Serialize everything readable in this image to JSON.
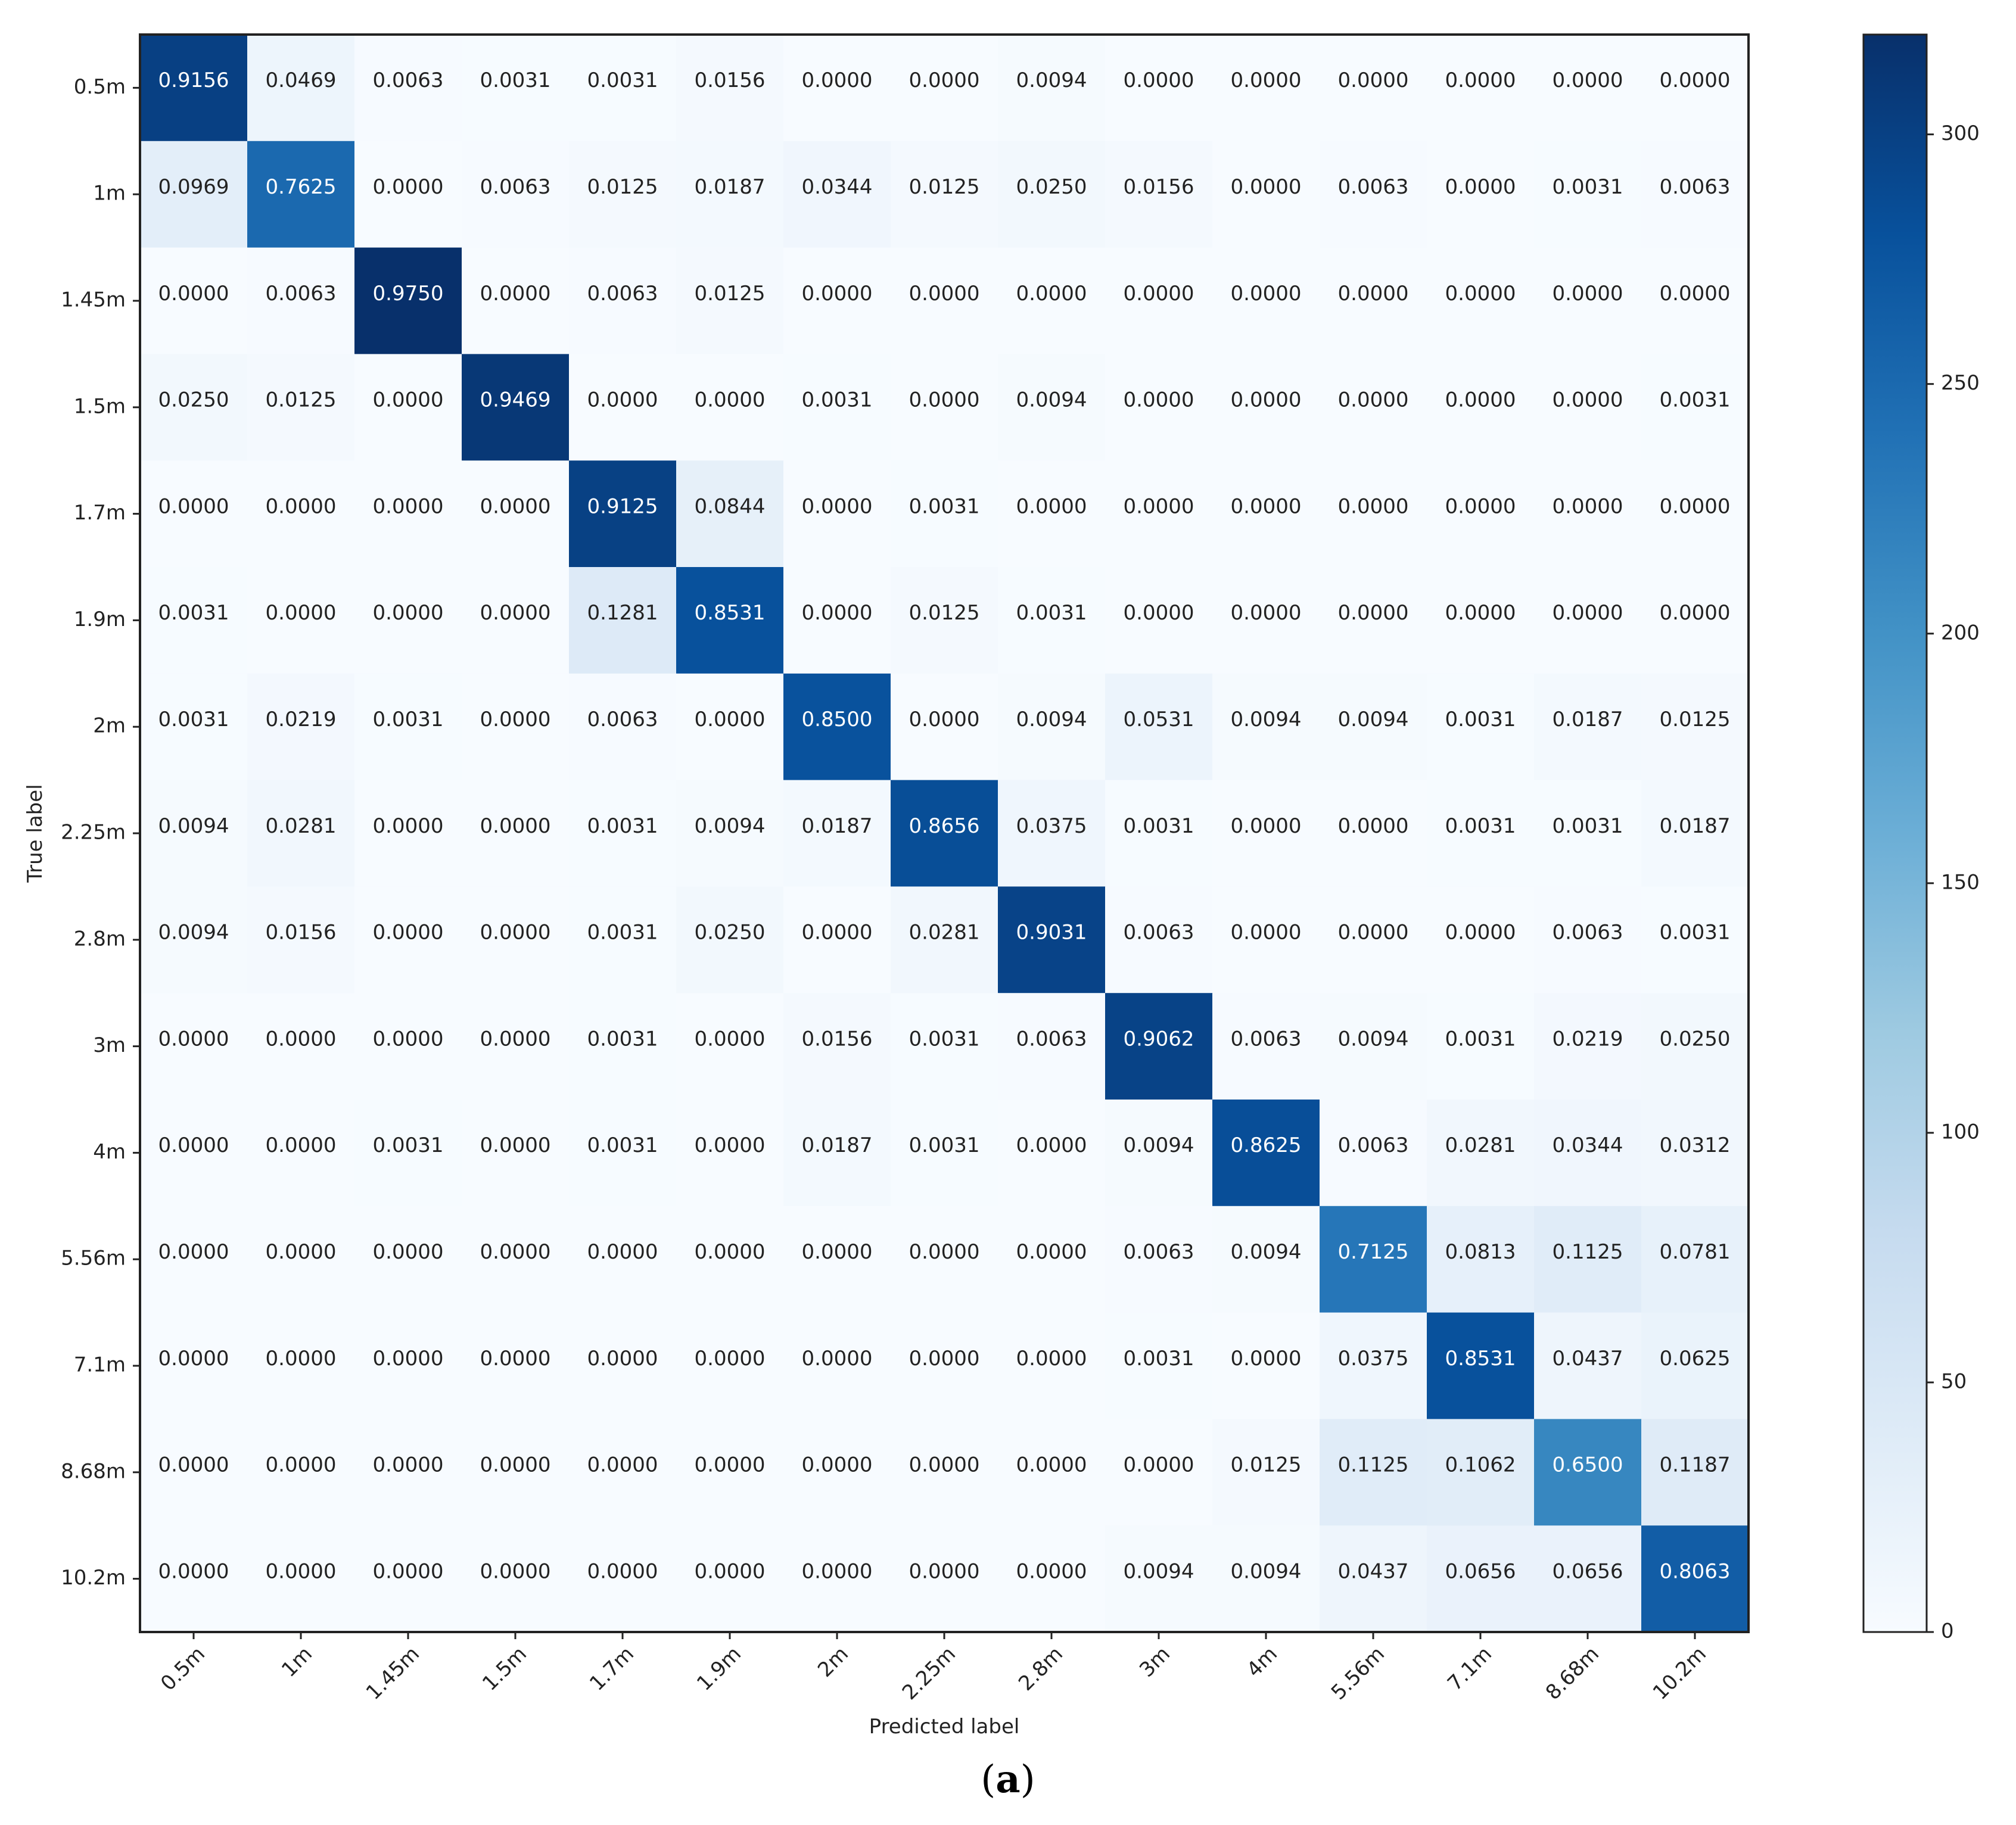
{
  "chart_data": {
    "type": "heatmap",
    "xlabel": "Predicted label",
    "ylabel": "True label",
    "x_categories": [
      "0.5m",
      "1m",
      "1.45m",
      "1.5m",
      "1.7m",
      "1.9m",
      "2m",
      "2.25m",
      "2.8m",
      "3m",
      "4m",
      "5.56m",
      "7.1m",
      "8.68m",
      "10.2m"
    ],
    "y_categories": [
      "0.5m",
      "1m",
      "1.45m",
      "1.5m",
      "1.7m",
      "1.9m",
      "2m",
      "2.25m",
      "2.8m",
      "3m",
      "4m",
      "5.56m",
      "7.1m",
      "8.68m",
      "10.2m"
    ],
    "values": [
      [
        "0.9156",
        "0.0469",
        "0.0063",
        "0.0031",
        "0.0031",
        "0.0156",
        "0.0000",
        "0.0000",
        "0.0094",
        "0.0000",
        "0.0000",
        "0.0000",
        "0.0000",
        "0.0000",
        "0.0000"
      ],
      [
        "0.0969",
        "0.7625",
        "0.0000",
        "0.0063",
        "0.0125",
        "0.0187",
        "0.0344",
        "0.0125",
        "0.0250",
        "0.0156",
        "0.0000",
        "0.0063",
        "0.0000",
        "0.0031",
        "0.0063"
      ],
      [
        "0.0000",
        "0.0063",
        "0.9750",
        "0.0000",
        "0.0063",
        "0.0125",
        "0.0000",
        "0.0000",
        "0.0000",
        "0.0000",
        "0.0000",
        "0.0000",
        "0.0000",
        "0.0000",
        "0.0000"
      ],
      [
        "0.0250",
        "0.0125",
        "0.0000",
        "0.9469",
        "0.0000",
        "0.0000",
        "0.0031",
        "0.0000",
        "0.0094",
        "0.0000",
        "0.0000",
        "0.0000",
        "0.0000",
        "0.0000",
        "0.0031"
      ],
      [
        "0.0000",
        "0.0000",
        "0.0000",
        "0.0000",
        "0.9125",
        "0.0844",
        "0.0000",
        "0.0031",
        "0.0000",
        "0.0000",
        "0.0000",
        "0.0000",
        "0.0000",
        "0.0000",
        "0.0000"
      ],
      [
        "0.0031",
        "0.0000",
        "0.0000",
        "0.0000",
        "0.1281",
        "0.8531",
        "0.0000",
        "0.0125",
        "0.0031",
        "0.0000",
        "0.0000",
        "0.0000",
        "0.0000",
        "0.0000",
        "0.0000"
      ],
      [
        "0.0031",
        "0.0219",
        "0.0031",
        "0.0000",
        "0.0063",
        "0.0000",
        "0.8500",
        "0.0000",
        "0.0094",
        "0.0531",
        "0.0094",
        "0.0094",
        "0.0031",
        "0.0187",
        "0.0125"
      ],
      [
        "0.0094",
        "0.0281",
        "0.0000",
        "0.0000",
        "0.0031",
        "0.0094",
        "0.0187",
        "0.8656",
        "0.0375",
        "0.0031",
        "0.0000",
        "0.0000",
        "0.0031",
        "0.0031",
        "0.0187"
      ],
      [
        "0.0094",
        "0.0156",
        "0.0000",
        "0.0000",
        "0.0031",
        "0.0250",
        "0.0000",
        "0.0281",
        "0.9031",
        "0.0063",
        "0.0000",
        "0.0000",
        "0.0000",
        "0.0063",
        "0.0031"
      ],
      [
        "0.0000",
        "0.0000",
        "0.0000",
        "0.0000",
        "0.0031",
        "0.0000",
        "0.0156",
        "0.0031",
        "0.0063",
        "0.9062",
        "0.0063",
        "0.0094",
        "0.0031",
        "0.0219",
        "0.0250"
      ],
      [
        "0.0000",
        "0.0000",
        "0.0031",
        "0.0000",
        "0.0031",
        "0.0000",
        "0.0187",
        "0.0031",
        "0.0000",
        "0.0094",
        "0.8625",
        "0.0063",
        "0.0281",
        "0.0344",
        "0.0312"
      ],
      [
        "0.0000",
        "0.0000",
        "0.0000",
        "0.0000",
        "0.0000",
        "0.0000",
        "0.0000",
        "0.0000",
        "0.0000",
        "0.0063",
        "0.0094",
        "0.7125",
        "0.0813",
        "0.1125",
        "0.0781"
      ],
      [
        "0.0000",
        "0.0000",
        "0.0000",
        "0.0000",
        "0.0000",
        "0.0000",
        "0.0000",
        "0.0000",
        "0.0000",
        "0.0031",
        "0.0000",
        "0.0375",
        "0.8531",
        "0.0437",
        "0.0625"
      ],
      [
        "0.0000",
        "0.0000",
        "0.0000",
        "0.0000",
        "0.0000",
        "0.0000",
        "0.0000",
        "0.0000",
        "0.0000",
        "0.0000",
        "0.0125",
        "0.1125",
        "0.1062",
        "0.6500",
        "0.1187"
      ],
      [
        "0.0000",
        "0.0000",
        "0.0000",
        "0.0000",
        "0.0000",
        "0.0000",
        "0.0000",
        "0.0000",
        "0.0000",
        "0.0094",
        "0.0094",
        "0.0437",
        "0.0656",
        "0.0656",
        "0.8063"
      ]
    ],
    "colorbar": {
      "range": [
        0,
        320
      ],
      "ticks": [
        "0",
        "50",
        "100",
        "150",
        "200",
        "250",
        "300"
      ],
      "colormap": "Blues"
    },
    "samples_per_class": 320,
    "grid": false
  },
  "caption": {
    "open": "(",
    "letter": "a",
    "close": ")"
  }
}
